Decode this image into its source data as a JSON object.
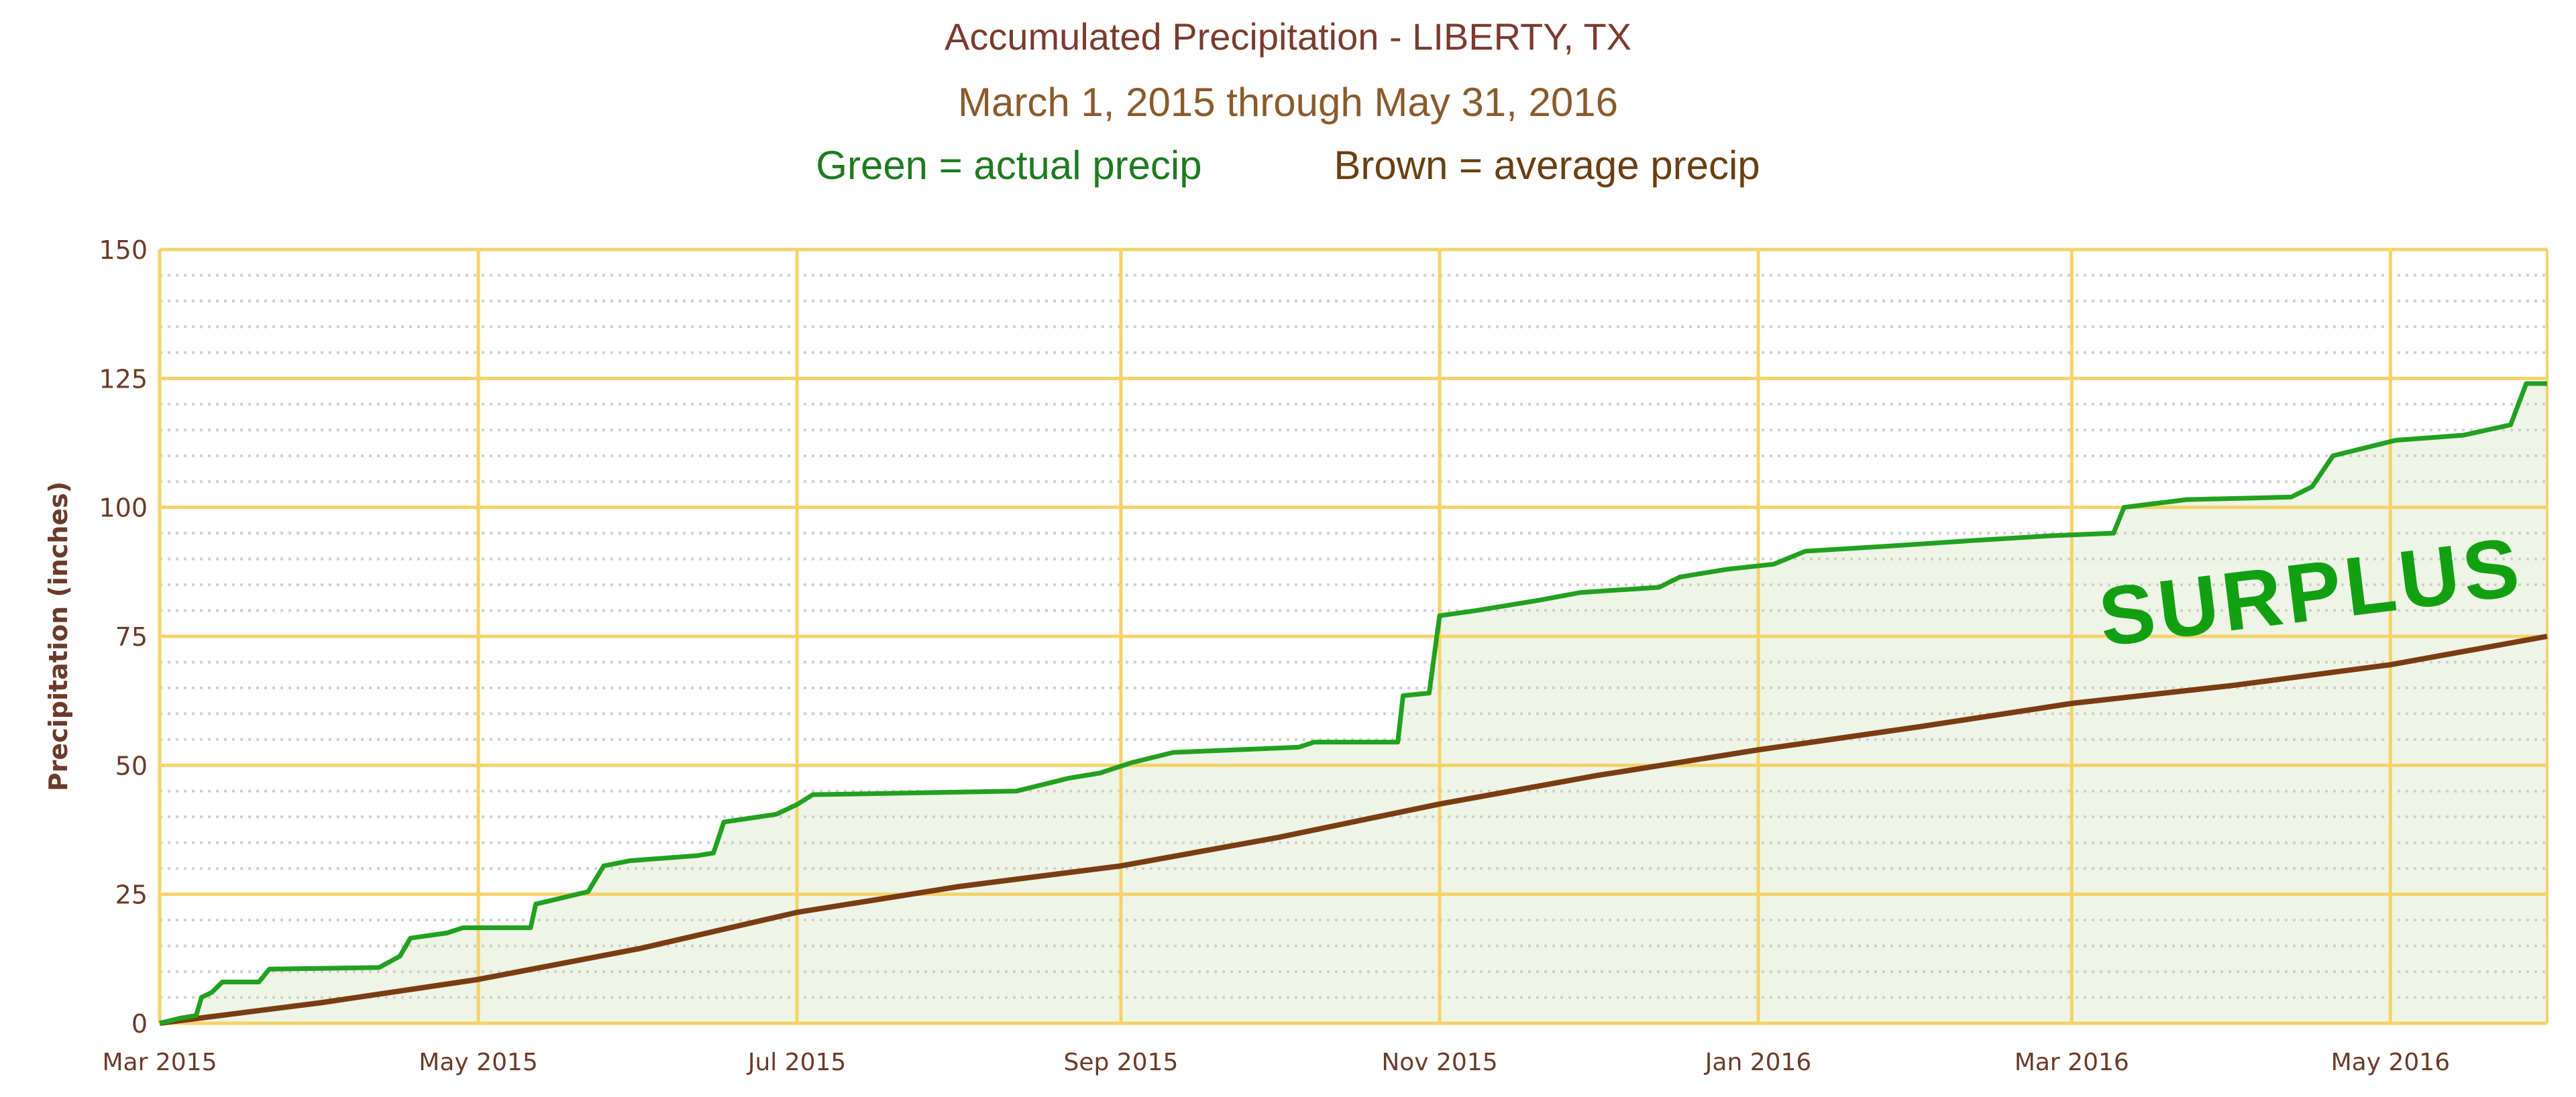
{
  "chart_data": {
    "type": "line",
    "title": "Accumulated Precipitation - LIBERTY, TX",
    "subtitle": "March 1, 2015 through May 31, 2016",
    "legend": [
      {
        "label": "Green = actual precip",
        "color": "#1f7a1f"
      },
      {
        "label": "Brown = average precip",
        "color": "#6b3f12"
      }
    ],
    "ylabel": "Precipitation (inches)",
    "xlabel": "",
    "ylim": [
      0,
      150
    ],
    "yticks": [
      0,
      25,
      50,
      75,
      100,
      125,
      150
    ],
    "xlim": [
      "2015-03-01",
      "2016-05-31"
    ],
    "xticks": [
      {
        "date": "2015-03-01",
        "label": "Mar 2015"
      },
      {
        "date": "2015-05-01",
        "label": "May 2015"
      },
      {
        "date": "2015-07-01",
        "label": "Jul 2015"
      },
      {
        "date": "2015-09-01",
        "label": "Sep 2015"
      },
      {
        "date": "2015-11-01",
        "label": "Nov 2015"
      },
      {
        "date": "2016-01-01",
        "label": "Jan 2016"
      },
      {
        "date": "2016-03-01",
        "label": "Mar 2016"
      },
      {
        "date": "2016-05-01",
        "label": "May 2016"
      }
    ],
    "grid": true,
    "annotation": {
      "text": "SURPLUS",
      "color": "#12a012"
    },
    "series": [
      {
        "key": "actual",
        "color": "#22a020",
        "fill": "#eef5e6",
        "points": [
          [
            "2015-03-01",
            0
          ],
          [
            "2015-03-05",
            1
          ],
          [
            "2015-03-08",
            1.5
          ],
          [
            "2015-03-09",
            5
          ],
          [
            "2015-03-11",
            6
          ],
          [
            "2015-03-13",
            8
          ],
          [
            "2015-03-20",
            8
          ],
          [
            "2015-03-22",
            10.5
          ],
          [
            "2015-04-12",
            10.8
          ],
          [
            "2015-04-16",
            13
          ],
          [
            "2015-04-18",
            16.5
          ],
          [
            "2015-04-25",
            17.5
          ],
          [
            "2015-04-28",
            18.5
          ],
          [
            "2015-05-11",
            18.5
          ],
          [
            "2015-05-12",
            23.1
          ],
          [
            "2015-05-22",
            25.5
          ],
          [
            "2015-05-25",
            30.5
          ],
          [
            "2015-05-30",
            31.5
          ],
          [
            "2015-06-12",
            32.5
          ],
          [
            "2015-06-15",
            33
          ],
          [
            "2015-06-17",
            39
          ],
          [
            "2015-06-27",
            40.5
          ],
          [
            "2015-07-01",
            42.4
          ],
          [
            "2015-07-04",
            44.3
          ],
          [
            "2015-08-12",
            45
          ],
          [
            "2015-08-22",
            47.5
          ],
          [
            "2015-08-28",
            48.5
          ],
          [
            "2015-09-03",
            50.5
          ],
          [
            "2015-09-11",
            52.5
          ],
          [
            "2015-10-05",
            53.5
          ],
          [
            "2015-10-08",
            54.5
          ],
          [
            "2015-10-24",
            54.5
          ],
          [
            "2015-10-25",
            63.5
          ],
          [
            "2015-10-30",
            64
          ],
          [
            "2015-11-01",
            79
          ],
          [
            "2015-11-08",
            80
          ],
          [
            "2015-11-20",
            82
          ],
          [
            "2015-11-28",
            83.5
          ],
          [
            "2015-12-13",
            84.5
          ],
          [
            "2015-12-17",
            86.5
          ],
          [
            "2015-12-26",
            88
          ],
          [
            "2016-01-04",
            89
          ],
          [
            "2016-01-10",
            91.5
          ],
          [
            "2016-01-26",
            92.5
          ],
          [
            "2016-02-10",
            93.5
          ],
          [
            "2016-02-26",
            94.5
          ],
          [
            "2016-03-09",
            95
          ],
          [
            "2016-03-11",
            100
          ],
          [
            "2016-03-23",
            101.5
          ],
          [
            "2016-04-12",
            102
          ],
          [
            "2016-04-16",
            104
          ],
          [
            "2016-04-20",
            110
          ],
          [
            "2016-05-02",
            113
          ],
          [
            "2016-05-15",
            114
          ],
          [
            "2016-05-24",
            116
          ],
          [
            "2016-05-27",
            124
          ],
          [
            "2016-05-31",
            124
          ]
        ]
      },
      {
        "key": "average",
        "color": "#7a3c12",
        "points": [
          [
            "2015-03-01",
            0
          ],
          [
            "2015-04-01",
            4
          ],
          [
            "2015-05-01",
            8.5
          ],
          [
            "2015-06-01",
            14.5
          ],
          [
            "2015-07-01",
            21.5
          ],
          [
            "2015-08-01",
            26.5
          ],
          [
            "2015-09-01",
            30.5
          ],
          [
            "2015-10-01",
            36
          ],
          [
            "2015-11-01",
            42.5
          ],
          [
            "2015-12-01",
            48
          ],
          [
            "2016-01-01",
            53
          ],
          [
            "2016-02-01",
            57.5
          ],
          [
            "2016-03-01",
            62
          ],
          [
            "2016-04-01",
            65.5
          ],
          [
            "2016-05-01",
            69.5
          ],
          [
            "2016-05-31",
            75
          ]
        ]
      }
    ]
  }
}
